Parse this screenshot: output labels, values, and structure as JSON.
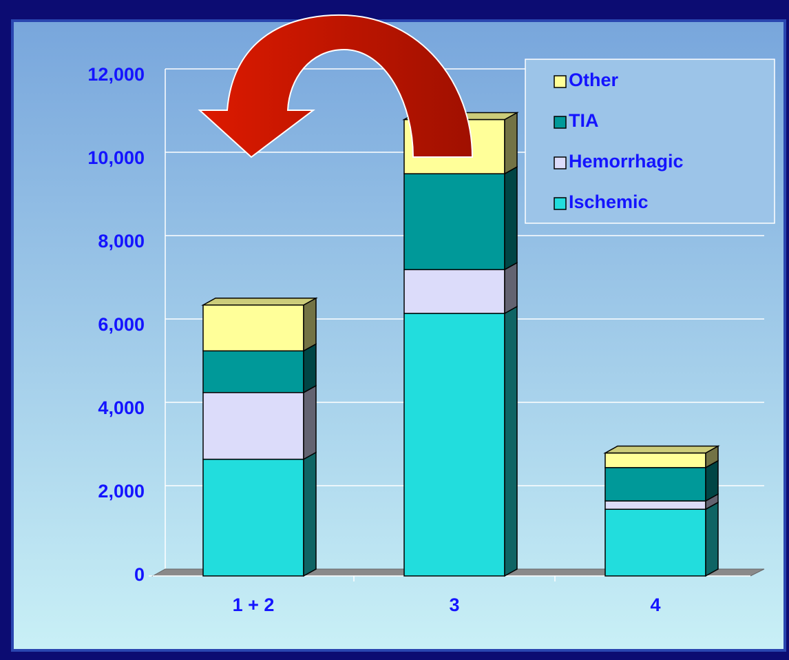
{
  "chart_data": {
    "type": "bar",
    "stacked": true,
    "categories": [
      "1 + 2",
      "3",
      "4"
    ],
    "series": [
      {
        "name": "Ischemic",
        "color": "#22dddd",
        "values": [
          2800,
          6300,
          1600
        ]
      },
      {
        "name": "Hemorrhagic",
        "color": "#dcdcfa",
        "values": [
          1600,
          1050,
          200
        ]
      },
      {
        "name": "TIA",
        "color": "#009999",
        "values": [
          1000,
          2300,
          800
        ]
      },
      {
        "name": "Other",
        "color": "#ffff99",
        "values": [
          1100,
          1300,
          350
        ]
      }
    ],
    "ylim": [
      0,
      12000
    ],
    "yticks": [
      0,
      {
        "value": 2000,
        "label": "2,000"
      },
      {
        "value": 4000,
        "label": "4,000"
      },
      {
        "value": 6000,
        "label": "6,000"
      },
      {
        "value": 8000,
        "label": "8,000"
      },
      {
        "value": 10000,
        "label": "10,000"
      },
      {
        "value": 12000,
        "label": "12,000"
      }
    ],
    "grid": true,
    "legend": "top-right"
  }
}
